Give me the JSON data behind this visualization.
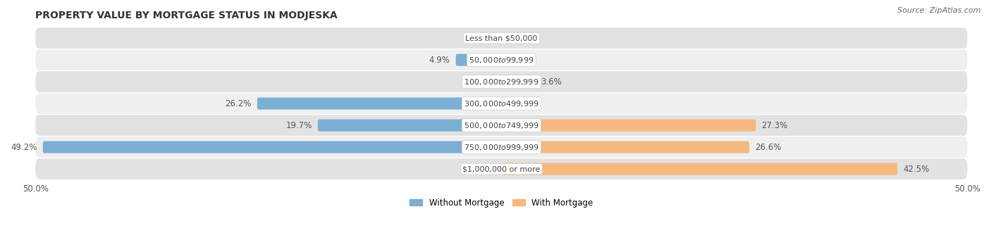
{
  "title": "PROPERTY VALUE BY MORTGAGE STATUS IN MODJESKA",
  "source": "Source: ZipAtlas.com",
  "categories": [
    "Less than $50,000",
    "$50,000 to $99,999",
    "$100,000 to $299,999",
    "$300,000 to $499,999",
    "$500,000 to $749,999",
    "$750,000 to $999,999",
    "$1,000,000 or more"
  ],
  "without_mortgage": [
    0.0,
    4.9,
    0.0,
    26.2,
    19.7,
    49.2,
    0.0
  ],
  "with_mortgage": [
    0.0,
    0.0,
    3.6,
    0.0,
    27.3,
    26.6,
    42.5
  ],
  "color_without": "#7bafd4",
  "color_with": "#f5b97f",
  "bar_height": 0.55,
  "xlim": 50.0,
  "x_tick_labels": [
    "50.0%",
    "50.0%"
  ],
  "legend_without": "Without Mortgage",
  "legend_with": "With Mortgage",
  "bg_dark": "#e2e2e2",
  "bg_light": "#efefef",
  "title_fontsize": 10,
  "source_fontsize": 8,
  "label_fontsize": 8.5,
  "category_fontsize": 8
}
